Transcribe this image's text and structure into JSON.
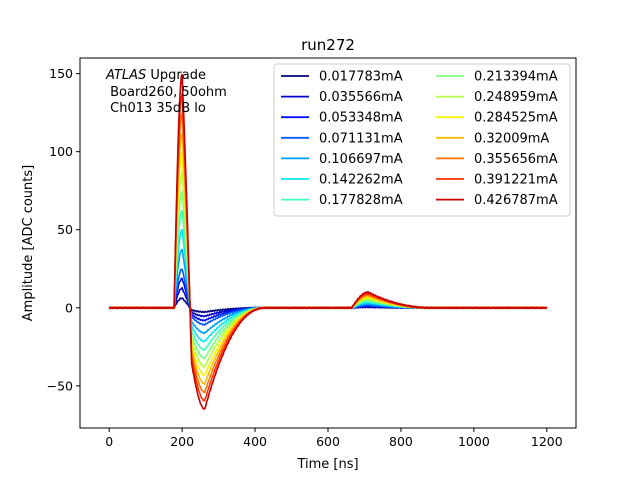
{
  "chart_data": {
    "type": "line",
    "title": "run272",
    "xlabel": "Time [ns]",
    "ylabel": "Amplitude [ADC counts]",
    "xlim": [
      -80,
      1280
    ],
    "ylim": [
      -77,
      160
    ],
    "xticks": [
      0,
      200,
      400,
      600,
      800,
      1000,
      1200
    ],
    "yticks": [
      -50,
      0,
      50,
      100,
      150
    ],
    "xtick_labels": [
      "0",
      "200",
      "400",
      "600",
      "800",
      "1000",
      "1200"
    ],
    "ytick_labels": [
      "−50",
      "0",
      "50",
      "100",
      "150"
    ],
    "grid": false,
    "legend_position": "top-right",
    "legend_columns": 2,
    "annotation": {
      "atlas": "ATLAS",
      "atlas_suffix": " Upgrade",
      "line2": " Board260, 50ohm",
      "line3": " Ch013 35dB lo"
    },
    "pulse_shape": {
      "baseline": 0,
      "t_range": [
        0,
        1200
      ],
      "points_per_series": 13,
      "peak_time": 200,
      "undershoot_time": 260,
      "secondary_peak_time": 710,
      "peak_over_current": 350,
      "undershoot_over_current": 152,
      "secondary_peak_value": 10
    },
    "series": [
      {
        "name": "0.017783mA",
        "current": 0.017783,
        "peak": 6.2,
        "undershoot": -2.7,
        "color": "#00007f"
      },
      {
        "name": "0.035566mA",
        "current": 0.035566,
        "peak": 12.5,
        "undershoot": -5.4,
        "color": "#0000c8"
      },
      {
        "name": "0.053348mA",
        "current": 0.053348,
        "peak": 18.7,
        "undershoot": -8.1,
        "color": "#0010ff"
      },
      {
        "name": "0.071131mA",
        "current": 0.071131,
        "peak": 24.9,
        "undershoot": -10.8,
        "color": "#0058ff"
      },
      {
        "name": "0.106697mA",
        "current": 0.106697,
        "peak": 37.3,
        "undershoot": -16.2,
        "color": "#00a0ff"
      },
      {
        "name": "0.142262mA",
        "current": 0.142262,
        "peak": 49.8,
        "undershoot": -21.6,
        "color": "#0ae4f2"
      },
      {
        "name": "0.177828mA",
        "current": 0.177828,
        "peak": 62.2,
        "undershoot": -27.0,
        "color": "#40ffb6"
      },
      {
        "name": "0.213394mA",
        "current": 0.213394,
        "peak": 74.7,
        "undershoot": -32.4,
        "color": "#7cff7a"
      },
      {
        "name": "0.248959mA",
        "current": 0.248959,
        "peak": 87.1,
        "undershoot": -37.8,
        "color": "#b6ff40"
      },
      {
        "name": "0.284525mA",
        "current": 0.284525,
        "peak": 99.6,
        "undershoot": -43.2,
        "color": "#f4f802"
      },
      {
        "name": "0.32009mA",
        "current": 0.32009,
        "peak": 112.0,
        "undershoot": -48.7,
        "color": "#ffb900"
      },
      {
        "name": "0.355656mA",
        "current": 0.355656,
        "peak": 124.5,
        "undershoot": -54.1,
        "color": "#ff7300"
      },
      {
        "name": "0.391221mA",
        "current": 0.391221,
        "peak": 136.9,
        "undershoot": -59.5,
        "color": "#ff3000"
      },
      {
        "name": "0.426787mA",
        "current": 0.426787,
        "peak": 149.4,
        "undershoot": -64.9,
        "color": "#c80000"
      }
    ]
  }
}
